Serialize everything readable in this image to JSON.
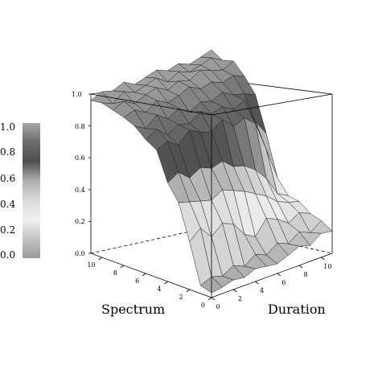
{
  "chart_data": {
    "type": "surface3d",
    "xlabel": "Spectrum",
    "ylabel": "Duration",
    "zlabel": "",
    "x_ticks": [
      0,
      2,
      4,
      6,
      8,
      10
    ],
    "y_ticks": [
      0,
      2,
      4,
      6,
      8,
      10
    ],
    "z_ticks": [
      "0.0",
      "0.2",
      "0.4",
      "0.6",
      "0.8",
      "1.0"
    ],
    "colorbar_ticks": [
      "0.0",
      "0.2",
      "0.4",
      "0.6",
      "0.8",
      "1.0"
    ],
    "xlim": [
      0,
      11
    ],
    "ylim": [
      0,
      11
    ],
    "zlim": [
      0,
      1
    ],
    "colormap": [
      "#9a9a9a",
      "#c4c4c4",
      "#f0f0f0",
      "#dadada",
      "#b0b0b0",
      "#505050",
      "#6a6a6a",
      "#a8a8a8"
    ],
    "grid": false,
    "x": [
      0,
      1,
      2,
      3,
      4,
      5,
      6,
      7,
      8,
      9,
      10,
      11
    ],
    "y": [
      0,
      1,
      2,
      3,
      4,
      5,
      6,
      7,
      8,
      9,
      10,
      11
    ],
    "z_by_spectrum_then_duration": [
      [
        0.03,
        0.04,
        0.06,
        0.05,
        0.08,
        0.07,
        0.06,
        0.09,
        0.12,
        0.1,
        0.15,
        0.14
      ],
      [
        0.05,
        0.08,
        0.06,
        0.1,
        0.07,
        0.12,
        0.09,
        0.14,
        0.11,
        0.16,
        0.13,
        0.18
      ],
      [
        0.3,
        0.36,
        0.28,
        0.34,
        0.31,
        0.22,
        0.18,
        0.27,
        0.24,
        0.19,
        0.23,
        0.2
      ],
      [
        0.52,
        0.5,
        0.48,
        0.46,
        0.5,
        0.47,
        0.44,
        0.4,
        0.36,
        0.3,
        0.27,
        0.25
      ],
      [
        0.62,
        0.66,
        0.6,
        0.64,
        0.61,
        0.63,
        0.57,
        0.55,
        0.5,
        0.42,
        0.3,
        0.26
      ],
      [
        0.8,
        0.83,
        0.78,
        0.85,
        0.81,
        0.79,
        0.84,
        0.77,
        0.8,
        0.74,
        0.55,
        0.35
      ],
      [
        0.84,
        0.88,
        0.82,
        0.86,
        0.84,
        0.89,
        0.85,
        0.87,
        0.83,
        0.86,
        0.7,
        0.6
      ],
      [
        0.9,
        0.86,
        0.92,
        0.87,
        0.91,
        0.86,
        0.9,
        0.88,
        0.91,
        0.87,
        0.85,
        0.82
      ],
      [
        0.93,
        0.95,
        0.91,
        0.96,
        0.92,
        0.94,
        0.97,
        0.93,
        0.95,
        0.92,
        0.94,
        0.91
      ],
      [
        0.95,
        0.98,
        0.94,
        0.97,
        0.99,
        0.95,
        0.98,
        0.96,
        1.0,
        0.97,
        0.95,
        0.98
      ],
      [
        0.97,
        0.94,
        0.99,
        0.96,
        0.98,
        1.0,
        0.95,
        0.99,
        0.96,
        0.98,
        1.0,
        0.96
      ],
      [
        0.96,
        0.99,
        0.97,
        1.0,
        0.96,
        0.98,
        1.0,
        0.97,
        0.99,
        0.96,
        0.98,
        1.0
      ]
    ]
  }
}
